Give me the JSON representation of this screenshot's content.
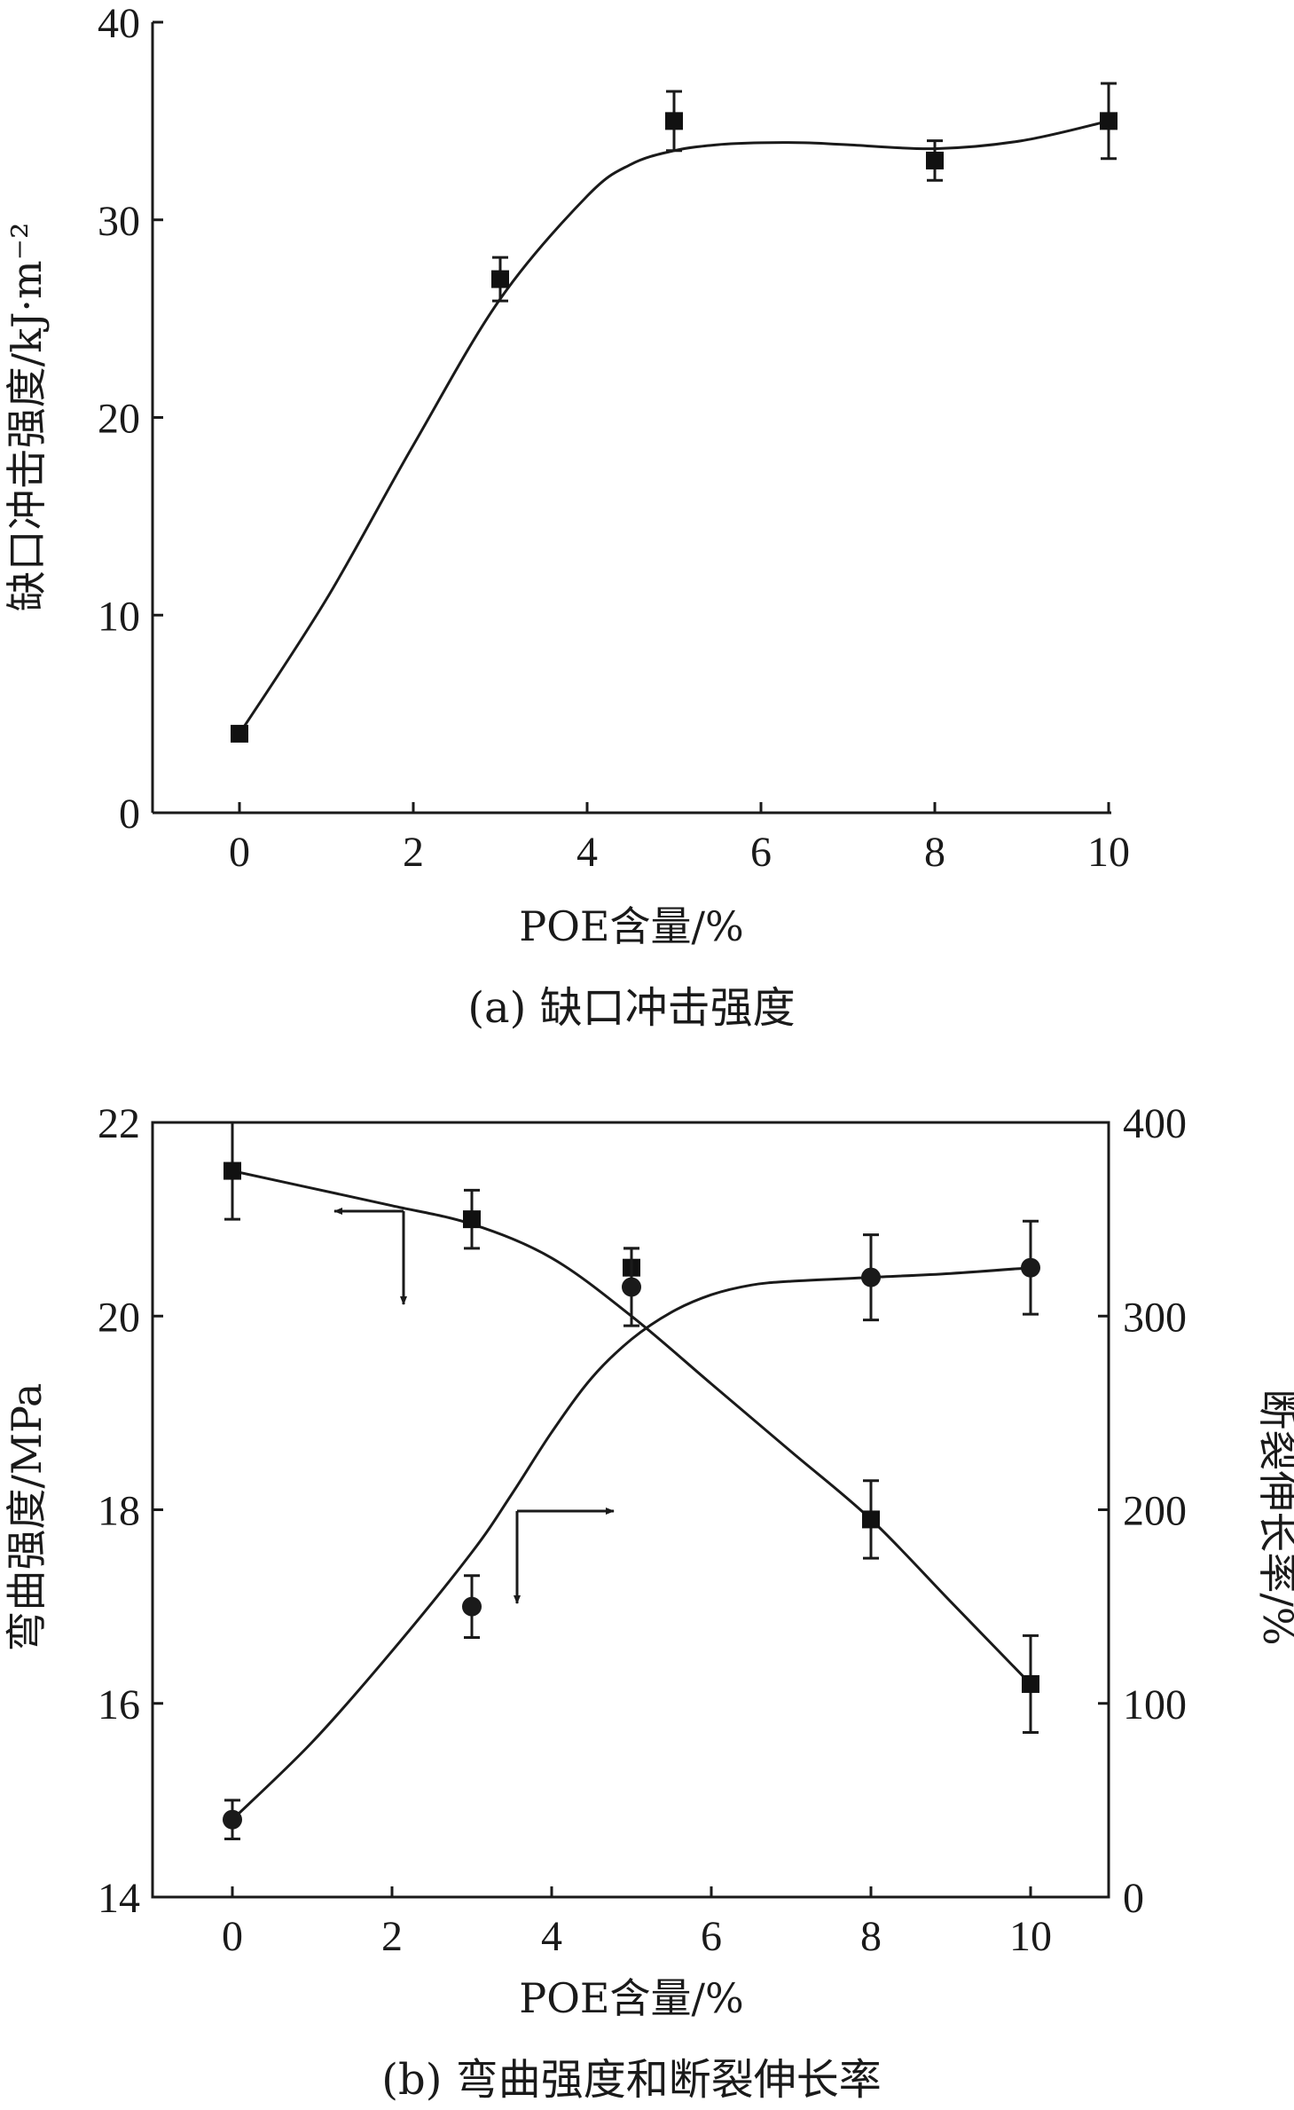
{
  "chart_data": [
    {
      "type": "scatter",
      "xlabel": "POE含量/%",
      "ylabel": "缺口冲击强度/kJ·m⁻²",
      "caption": "(a) 缺口冲击强度",
      "xlim": [
        -1,
        10
      ],
      "ylim": [
        0,
        40
      ],
      "xticks": [
        0,
        2,
        4,
        6,
        8,
        10
      ],
      "yticks": [
        0,
        10,
        20,
        30,
        40
      ],
      "marker": "square",
      "series": [
        {
          "x": [
            0,
            3,
            5,
            8,
            10
          ],
          "values": [
            4.0,
            27.0,
            35.0,
            33.0,
            35.0
          ],
          "error": [
            0.0,
            1.1,
            1.5,
            1.0,
            1.9
          ]
        }
      ],
      "fit_curve": {
        "x": [
          0,
          1,
          2,
          3,
          4,
          4.5,
          5,
          5.5,
          6,
          6.5,
          7,
          8,
          9,
          10
        ],
        "y": [
          4.0,
          10.8,
          18.6,
          26.0,
          31.2,
          32.8,
          33.5,
          33.8,
          33.9,
          33.9,
          33.8,
          33.6,
          34.0,
          35.0
        ]
      }
    },
    {
      "type": "scatter",
      "xlabel": "POE含量/%",
      "ylabel_left": "弯曲强度/MPa",
      "ylabel_right": "断裂伸长率/%",
      "caption": "(b) 弯曲强度和断裂伸长率",
      "xlim": [
        -1,
        11
      ],
      "ylim_left": [
        14,
        22
      ],
      "ylim_right": [
        0,
        400
      ],
      "xticks": [
        0,
        2,
        4,
        6,
        8,
        10
      ],
      "yticks_left": [
        14,
        16,
        18,
        20,
        22
      ],
      "yticks_right": [
        0,
        100,
        200,
        300,
        400
      ],
      "series": [
        {
          "axis": "left",
          "marker": "square",
          "x": [
            0,
            3,
            5,
            8,
            10
          ],
          "values": [
            21.5,
            21.0,
            20.5,
            17.9,
            16.2
          ],
          "error": [
            0.5,
            0.3,
            0.2,
            0.4,
            0.5
          ],
          "fit_curve": {
            "x": [
              0,
              1,
              2,
              3,
              4,
              5,
              6,
              7,
              8,
              9,
              10
            ],
            "y": [
              21.5,
              21.32,
              21.14,
              20.95,
              20.6,
              20.0,
              19.3,
              18.6,
              17.9,
              17.05,
              16.2
            ]
          }
        },
        {
          "axis": "right",
          "marker": "circle",
          "x": [
            0,
            3,
            5,
            8,
            10
          ],
          "values": [
            40,
            150,
            315,
            320,
            325
          ],
          "error": [
            10,
            16,
            20,
            22,
            24
          ],
          "fit_curve": {
            "x": [
              0,
              1,
              2,
              3,
              3.5,
              4,
              4.5,
              5,
              5.5,
              6,
              6.5,
              7,
              8,
              9,
              10
            ],
            "y": [
              40,
              80,
              127,
              178,
              208,
              240,
              268,
              288,
              302,
              311,
              316,
              318,
              320,
              322,
              325
            ]
          }
        }
      ]
    }
  ]
}
